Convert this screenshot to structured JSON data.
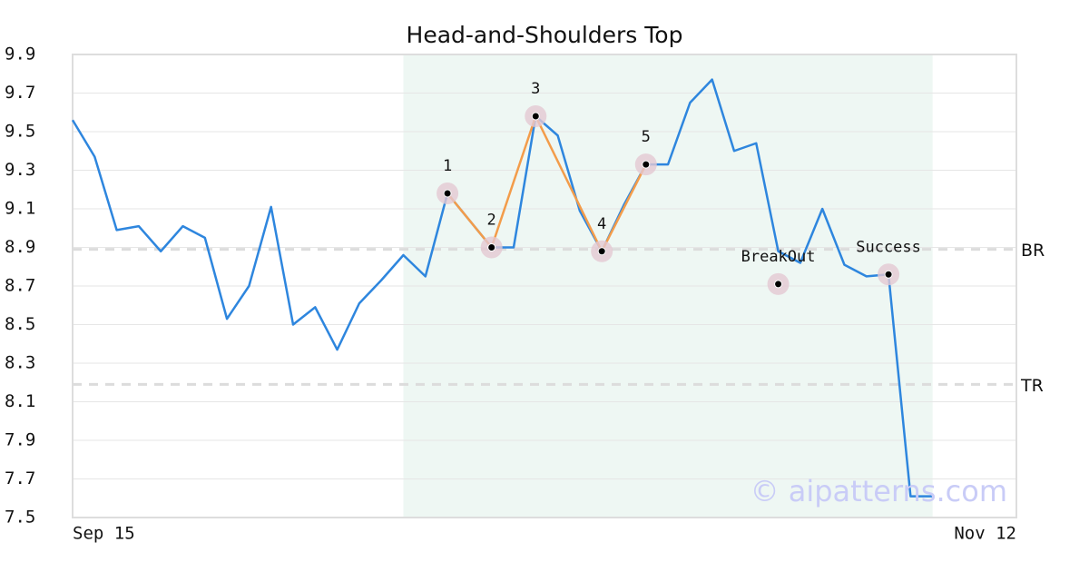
{
  "chart_data": {
    "type": "line",
    "title": "Head-and-Shoulders Top",
    "x": [
      0,
      1,
      2,
      3,
      4,
      5,
      6,
      7,
      8,
      9,
      10,
      11,
      12,
      13,
      14,
      15,
      16,
      17,
      18,
      19,
      20,
      21,
      22,
      23,
      24,
      25,
      26,
      27,
      28,
      29,
      30,
      31,
      32,
      33,
      34,
      35,
      36,
      37,
      38,
      39
    ],
    "series": [
      {
        "color": "#2e86de",
        "values": [
          9.56,
          9.37,
          8.99,
          9.01,
          8.88,
          9.01,
          8.95,
          8.53,
          8.7,
          9.11,
          8.5,
          8.59,
          8.37,
          8.61,
          8.73,
          8.86,
          8.75,
          9.18,
          9.04,
          8.9,
          8.9,
          9.58,
          9.48,
          9.09,
          8.88,
          9.12,
          9.33,
          9.33,
          9.65,
          9.77,
          9.4,
          9.44,
          8.88,
          8.82,
          9.1,
          8.81,
          8.75,
          8.76,
          7.61,
          7.61
        ]
      }
    ],
    "pattern": {
      "color": "#f39c4a",
      "x": [
        17,
        19,
        21,
        24,
        26
      ],
      "values": [
        9.18,
        8.9,
        9.58,
        8.88,
        9.33
      ],
      "labels": [
        "1",
        "2",
        "3",
        "4",
        "5"
      ]
    },
    "markers": [
      {
        "label": "BreakOut",
        "x": 32,
        "value": 8.71
      },
      {
        "label": "Success",
        "x": 37,
        "value": 8.76
      }
    ],
    "hlines": [
      {
        "label": "BR",
        "value": 8.89
      },
      {
        "label": "TR",
        "value": 8.19
      }
    ],
    "highlight": [
      15,
      39
    ],
    "watermark": "© aipatterns.com",
    "xlim": [
      0,
      42.8
    ],
    "xticks": [
      {
        "value": 0,
        "label": "Sep 15"
      },
      {
        "value": 42.8,
        "label": "Nov 12"
      }
    ],
    "ylim": [
      7.5,
      9.9
    ],
    "yticks": [
      7.5,
      7.7,
      7.9,
      8.1,
      8.3,
      8.5,
      8.7,
      8.9,
      9.1,
      9.3,
      9.5,
      9.7,
      9.9
    ],
    "grid": true
  }
}
